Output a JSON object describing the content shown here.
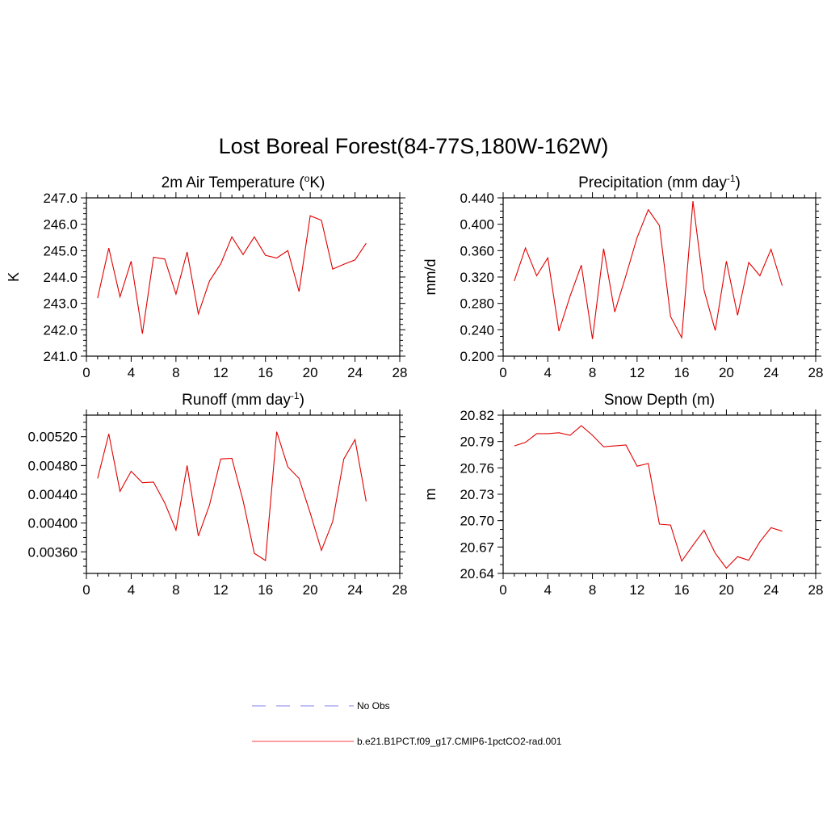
{
  "page_title": "Lost Boreal Forest(84-77S,180W-162W)",
  "legend": {
    "entries": [
      {
        "label": "No Obs",
        "color": "#9999ee",
        "dash": true
      },
      {
        "label": "b.e21.B1PCT.f09_g17.CMIP6-1pctCO2-rad.001",
        "color": "#ff6666",
        "dash": false
      }
    ]
  },
  "series_color": "#e00000",
  "chart_data": [
    {
      "type": "line",
      "title": "2m Air Temperature (",
      "title_sup": "o",
      "title_after": "K)",
      "ylabel": "K",
      "xlim": [
        0,
        28
      ],
      "xticks": [
        0,
        4,
        8,
        12,
        16,
        20,
        24,
        28
      ],
      "xtick_labels": [
        "0",
        "4",
        "8",
        "12",
        "16",
        "20",
        "24",
        "28"
      ],
      "ylim": [
        241.0,
        247.0
      ],
      "yticks": [
        241.0,
        242.0,
        243.0,
        244.0,
        245.0,
        246.0,
        247.0
      ],
      "ytick_labels": [
        "241.0",
        "242.0",
        "243.0",
        "244.0",
        "245.0",
        "246.0",
        "247.0"
      ],
      "yminor": 5,
      "x": [
        1,
        2,
        3,
        4,
        5,
        6,
        7,
        8,
        9,
        10,
        11,
        12,
        13,
        14,
        15,
        16,
        17,
        18,
        19,
        20,
        21,
        22,
        23,
        24,
        25
      ],
      "y": [
        243.2,
        245.1,
        243.25,
        244.6,
        241.85,
        244.75,
        244.68,
        243.35,
        244.95,
        242.6,
        243.85,
        244.5,
        245.52,
        244.85,
        245.52,
        244.82,
        244.72,
        245.0,
        243.45,
        246.32,
        246.15,
        244.3,
        244.48,
        244.65,
        245.28
      ]
    },
    {
      "type": "line",
      "title": "Precipitation (mm day",
      "title_sup": "-1",
      "title_after": ")",
      "ylabel": "mm/d",
      "xlim": [
        0,
        28
      ],
      "xticks": [
        0,
        4,
        8,
        12,
        16,
        20,
        24,
        28
      ],
      "xtick_labels": [
        "0",
        "4",
        "8",
        "12",
        "16",
        "20",
        "24",
        "28"
      ],
      "ylim": [
        0.2,
        0.44
      ],
      "yticks": [
        0.2,
        0.24,
        0.28,
        0.32,
        0.36,
        0.4,
        0.44
      ],
      "ytick_labels": [
        "0.200",
        "0.240",
        "0.280",
        "0.320",
        "0.360",
        "0.400",
        "0.440"
      ],
      "yminor": 4,
      "x": [
        1,
        2,
        3,
        4,
        5,
        6,
        7,
        8,
        9,
        10,
        11,
        12,
        13,
        14,
        15,
        16,
        17,
        18,
        19,
        20,
        21,
        22,
        23,
        24,
        25
      ],
      "y": [
        0.314,
        0.364,
        0.322,
        0.349,
        0.238,
        0.291,
        0.338,
        0.226,
        0.363,
        0.267,
        0.322,
        0.38,
        0.422,
        0.398,
        0.26,
        0.228,
        0.435,
        0.3,
        0.239,
        0.344,
        0.262,
        0.342,
        0.322,
        0.362,
        0.307
      ]
    },
    {
      "type": "line",
      "title": "Runoff (mm day",
      "title_sup": "-1",
      "title_after": ")",
      "ylabel": "",
      "xlim": [
        0,
        28
      ],
      "xticks": [
        0,
        4,
        8,
        12,
        16,
        20,
        24,
        28
      ],
      "xtick_labels": [
        "0",
        "4",
        "8",
        "12",
        "16",
        "20",
        "24",
        "28"
      ],
      "ylim": [
        0.0033,
        0.0055
      ],
      "yticks": [
        0.0036,
        0.004,
        0.0044,
        0.0048,
        0.0052
      ],
      "ytick_labels": [
        "0.00360",
        "0.00400",
        "0.00440",
        "0.00480",
        "0.00520"
      ],
      "yminor": 4,
      "x": [
        1,
        2,
        3,
        4,
        5,
        6,
        7,
        8,
        9,
        10,
        11,
        12,
        13,
        14,
        15,
        16,
        17,
        18,
        19,
        20,
        21,
        22,
        23,
        24,
        25
      ],
      "y": [
        0.00462,
        0.00524,
        0.00444,
        0.00472,
        0.00456,
        0.00457,
        0.00428,
        0.0039,
        0.0048,
        0.00382,
        0.00425,
        0.00489,
        0.0049,
        0.00431,
        0.00358,
        0.00348,
        0.00527,
        0.00478,
        0.00462,
        0.00414,
        0.00362,
        0.00402,
        0.00489,
        0.00516,
        0.0043
      ]
    },
    {
      "type": "line",
      "title": "Snow Depth (m)",
      "title_sup": "",
      "title_after": "",
      "ylabel": "m",
      "xlim": [
        0,
        28
      ],
      "xticks": [
        0,
        4,
        8,
        12,
        16,
        20,
        24,
        28
      ],
      "xtick_labels": [
        "0",
        "4",
        "8",
        "12",
        "16",
        "20",
        "24",
        "28"
      ],
      "ylim": [
        20.64,
        20.82
      ],
      "yticks": [
        20.64,
        20.67,
        20.7,
        20.73,
        20.76,
        20.79,
        20.82
      ],
      "ytick_labels": [
        "20.64",
        "20.67",
        "20.70",
        "20.73",
        "20.76",
        "20.79",
        "20.82"
      ],
      "yminor": 3,
      "x": [
        1,
        2,
        3,
        4,
        5,
        6,
        7,
        8,
        9,
        10,
        11,
        12,
        13,
        14,
        15,
        16,
        17,
        18,
        19,
        20,
        21,
        22,
        23,
        24,
        25
      ],
      "y": [
        20.785,
        20.789,
        20.799,
        20.799,
        20.8,
        20.797,
        20.808,
        20.797,
        20.784,
        20.785,
        20.786,
        20.762,
        20.765,
        20.696,
        20.695,
        20.654,
        20.672,
        20.689,
        20.663,
        20.646,
        20.659,
        20.655,
        20.676,
        20.692,
        20.688
      ]
    }
  ]
}
